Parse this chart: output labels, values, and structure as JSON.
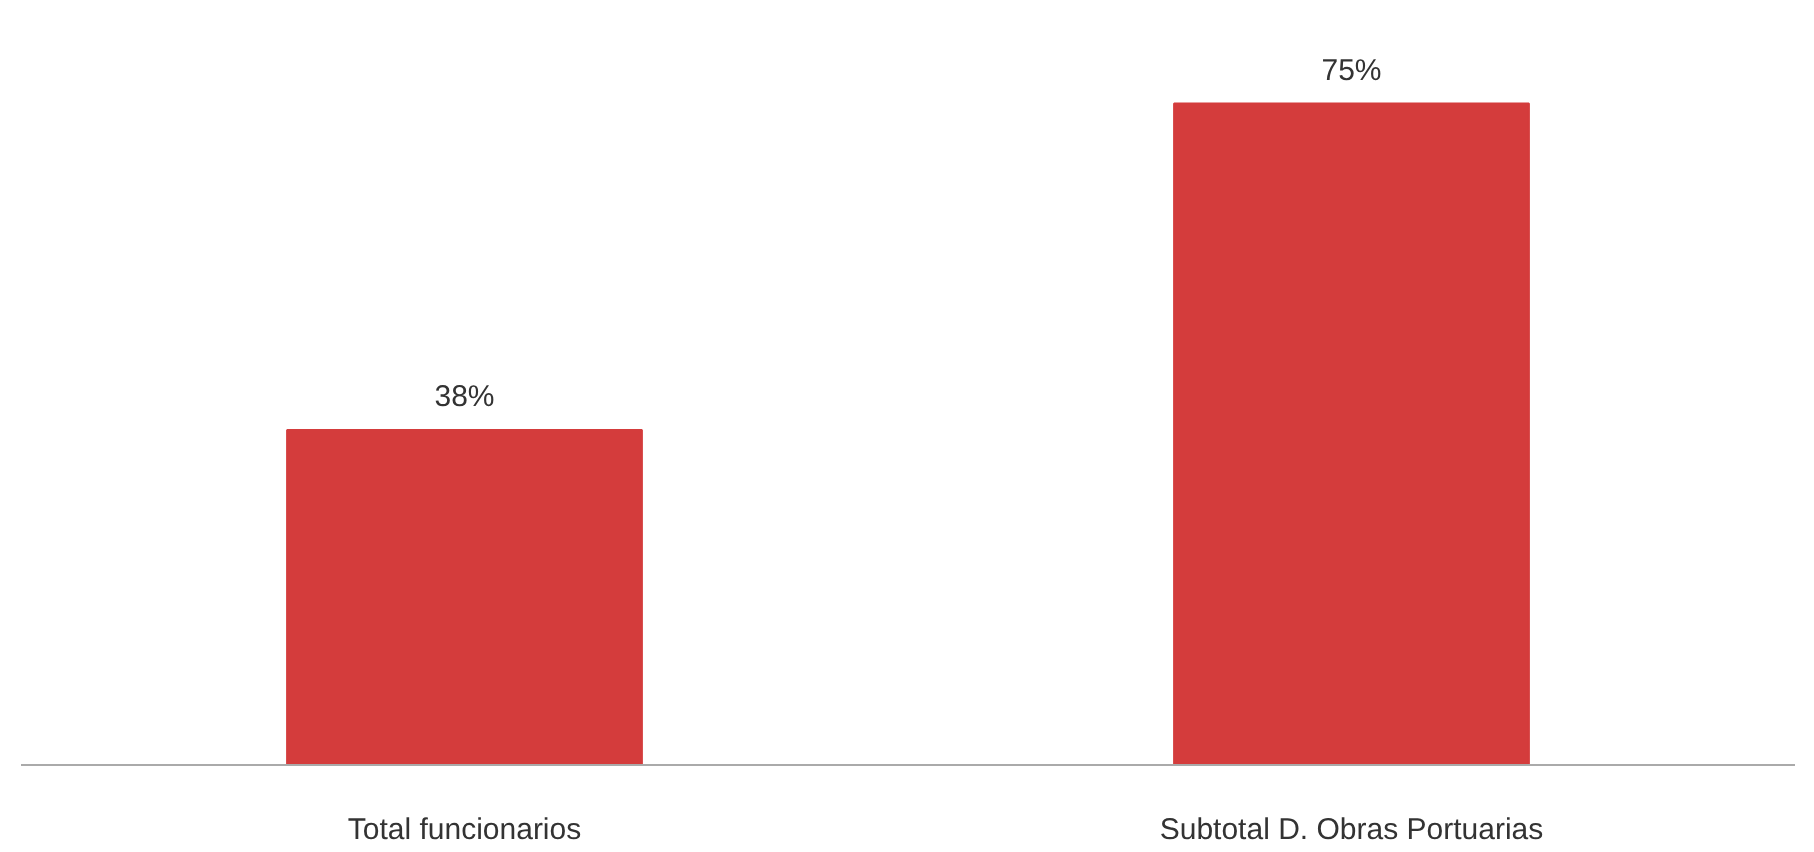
{
  "chart_data": {
    "type": "bar",
    "categories": [
      "Total funcionarios",
      "Subtotal D. Obras Portuarias"
    ],
    "values": [
      38,
      75
    ],
    "value_labels": [
      "38%",
      "75%"
    ],
    "color": "#d43c3c"
  }
}
